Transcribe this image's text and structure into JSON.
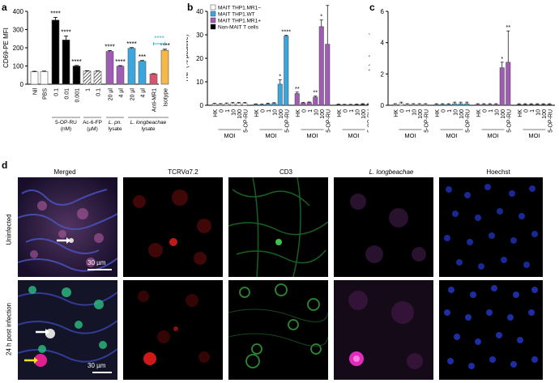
{
  "panel_labels": {
    "a": "a",
    "b": "b",
    "c": "c",
    "d": "d"
  },
  "chart_data": [
    {
      "type": "bar",
      "panel": "a",
      "ylabel": "CD69-PE MFI",
      "ylim": [
        0,
        400
      ],
      "yticks": [
        "0",
        "100",
        "200",
        "300",
        "400"
      ],
      "categories": [
        "Nil",
        "PBS",
        "0.1",
        "0.01",
        "0.001",
        "1",
        "0.1",
        "20 µl",
        "4 µl",
        "20 µl",
        "4 µl",
        "Anti-MR1",
        "Isotype"
      ],
      "values": [
        68,
        69,
        352,
        243,
        100,
        72,
        71,
        180,
        99,
        197,
        126,
        56,
        186
      ],
      "errors": [
        3,
        3,
        15,
        22,
        3,
        2,
        2,
        5,
        3,
        4,
        4,
        2,
        6
      ],
      "colors": [
        "#ffffff",
        "#ffffff",
        "#000000",
        "#000000",
        "#000000",
        "hatch",
        "hatch",
        "#a05bb4",
        "#a05bb4",
        "#3aa6dd",
        "#3aa6dd",
        "#d9536f",
        "#f7b84a"
      ],
      "stars": [
        "",
        "",
        "****",
        "****",
        "****",
        "",
        "",
        "****",
        "****",
        "****",
        "***",
        "",
        "****"
      ],
      "comparison_stars": "****",
      "comparison_color": "#39b5e0",
      "group_labels": [
        {
          "line1": "5-OP-RU",
          "line2": "(nM)"
        },
        {
          "line1": "Ac-6-FP",
          "line2": "(µM)"
        },
        {
          "line1": "L. pn.",
          "line2": "lysate"
        },
        {
          "line1": "L. longbeachae",
          "line2": "lysate"
        }
      ]
    },
    {
      "type": "bar",
      "panel": "b",
      "ylabel": "TNF (% positive)",
      "ylim": [
        0,
        40
      ],
      "yticks": [
        "0",
        "10",
        "20",
        "30",
        "40"
      ],
      "legend": [
        {
          "name": "MAIT THP1.MR1–",
          "color": "#ffffff"
        },
        {
          "name": "MAIT THP1.WT",
          "color": "#3aa6dd"
        },
        {
          "name": "MAIT THP1.MR1+",
          "color": "#a05bb4"
        },
        {
          "name": "Non-MAIT T cells",
          "color": "#000000"
        }
      ],
      "legend_placement": "top-left",
      "groups": [
        {
          "series": "MAIT THP1.MR1–",
          "values": [
            0.5,
            0.4,
            0.6,
            0.7,
            0.8
          ],
          "errors": [
            0.3,
            0.3,
            0.4,
            0.5,
            0.4
          ]
        },
        {
          "series": "MAIT THP1.WT",
          "values": [
            0.4,
            0.3,
            0.6,
            9.0,
            29.5
          ],
          "errors": [
            0.2,
            0.2,
            0.3,
            1.8,
            0.3
          ],
          "stars": [
            "",
            "",
            "",
            "*",
            "****"
          ]
        },
        {
          "series": "MAIT THP1.MR1+",
          "values": [
            5.0,
            1.0,
            1.2,
            3.5,
            33.5
          ],
          "errors": [
            0.6,
            0.2,
            0.2,
            0.4,
            2.8
          ],
          "stars": [
            "**",
            "",
            "",
            "**",
            "*"
          ]
        },
        {
          "series": "MAIT THP1.MR1+ (5-OP-RU)",
          "values": [
            26.0
          ],
          "errors": [
            16.5
          ]
        },
        {
          "series": "Non-MAIT T cells",
          "values": [
            0.3,
            0.2,
            0.2,
            0.3,
            0.4
          ],
          "errors": [
            0.2,
            0.2,
            0.2,
            0.2,
            0.3
          ]
        }
      ],
      "tick_labels": [
        "HK",
        "0",
        "1",
        "10",
        "100",
        "5-OP-RU"
      ],
      "group_label": "MOI"
    },
    {
      "type": "bar",
      "panel": "c",
      "ylabel": "IFN-γ (% positive)",
      "ylim": [
        0,
        6
      ],
      "yticks": [
        "0",
        "2",
        "4",
        "6"
      ],
      "groups": [
        {
          "values": [
            0.05,
            0.1,
            0.05,
            0.05,
            0.05
          ],
          "errors": [
            0.05,
            0.1,
            0.05,
            0.05,
            0.05
          ]
        },
        {
          "values": [
            0.05,
            0.05,
            0.05,
            0.1,
            0.1
          ],
          "errors": [
            0.05,
            0.05,
            0.05,
            0.1,
            0.1
          ]
        },
        {
          "values": [
            0.05,
            0.05,
            0.05,
            2.4,
            2.75
          ],
          "errors": [
            0.05,
            0.05,
            0.05,
            0.35,
            2.0
          ],
          "stars": [
            "",
            "",
            "",
            "*",
            "**"
          ]
        },
        {
          "values": [
            0.05,
            0.05,
            0.05,
            0.05,
            0.05
          ],
          "errors": [
            0.05,
            0.05,
            0.05,
            0.05,
            0.05
          ]
        }
      ],
      "tick_labels": [
        "HK",
        "0",
        "1",
        "10",
        "100",
        "5-OP-RU"
      ],
      "group_label": "MOI"
    }
  ],
  "microscopy": {
    "columns": [
      "Merged",
      "TCRVα7.2",
      "CD3",
      "L. longbeachae",
      "Hoechst"
    ],
    "rows": [
      "Uninfected",
      "24 h post infection"
    ],
    "scale_bar": "30 µm"
  }
}
